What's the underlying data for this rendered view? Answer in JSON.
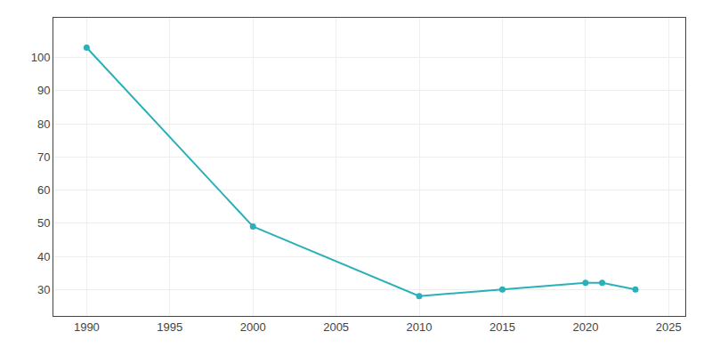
{
  "chart_data": {
    "type": "line",
    "x": [
      1990,
      2000,
      2010,
      2015,
      2020,
      2021,
      2023
    ],
    "values": [
      103,
      49,
      28,
      30,
      32,
      32,
      30
    ],
    "color": "#2ab0b8",
    "marker": "circle",
    "xlim": [
      1988,
      2026
    ],
    "ylim": [
      22,
      112
    ],
    "xticks": [
      1990,
      1995,
      2000,
      2005,
      2010,
      2015,
      2020,
      2025
    ],
    "yticks": [
      30,
      40,
      50,
      60,
      70,
      80,
      90,
      100
    ],
    "grid": true
  }
}
